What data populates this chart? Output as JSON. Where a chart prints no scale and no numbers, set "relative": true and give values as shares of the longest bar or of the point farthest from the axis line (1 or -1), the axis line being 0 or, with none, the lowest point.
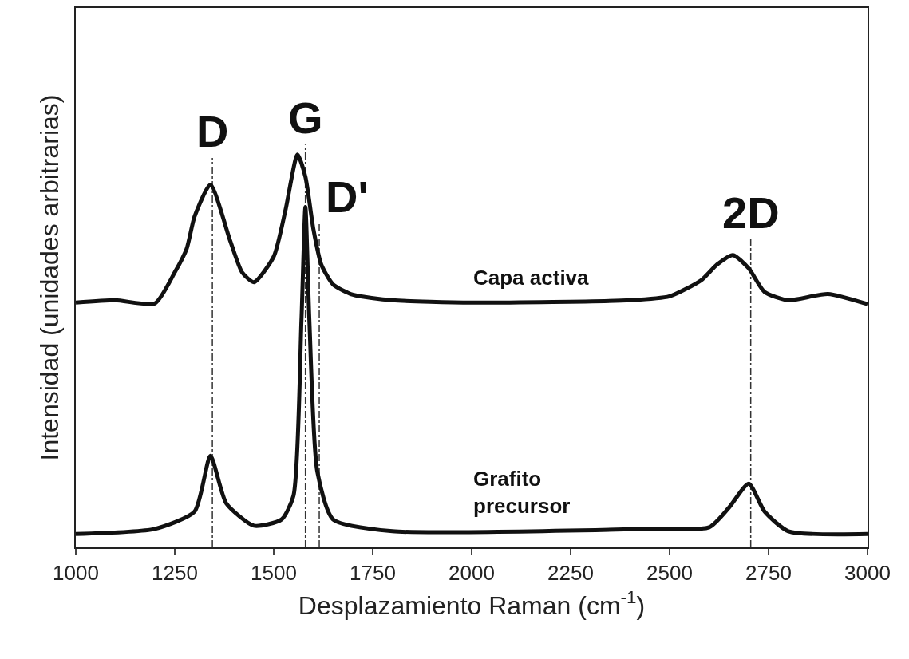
{
  "chart_data": {
    "type": "line",
    "relative": true,
    "xlabel": "Desplazamiento Raman (cm$^{-1}$)",
    "ylabel": "Intensidad (unidades arbitrarias)",
    "xlim": [
      1000,
      3000
    ],
    "xticks": [
      1000,
      1250,
      1500,
      1750,
      2000,
      2250,
      2500,
      2750,
      3000
    ],
    "grid": false,
    "legend": false,
    "tick_labels": "x",
    "line_style": "solid",
    "marker": "none",
    "series": [
      {
        "name": "Capa activa",
        "color": "#111111",
        "x": [
          1000,
          1100,
          1200,
          1250,
          1280,
          1300,
          1340,
          1390,
          1420,
          1450,
          1500,
          1530,
          1560,
          1580,
          1600,
          1620,
          1650,
          1700,
          1800,
          2000,
          2400,
          2500,
          2580,
          2620,
          2660,
          2700,
          2740,
          2800,
          2900,
          3000
        ],
        "values": [
          0.623,
          0.629,
          0.621,
          0.7,
          0.76,
          0.842,
          0.923,
          0.78,
          0.7,
          0.675,
          0.74,
          0.86,
          1.0,
          0.943,
          0.811,
          0.72,
          0.669,
          0.643,
          0.629,
          0.623,
          0.629,
          0.639,
          0.68,
          0.72,
          0.744,
          0.71,
          0.65,
          0.629,
          0.645,
          0.619
        ]
      },
      {
        "name": "Grafito\nprecursor",
        "color": "#111111",
        "x": [
          1000,
          1200,
          1300,
          1340,
          1380,
          1450,
          1520,
          1550,
          1570,
          1580,
          1590,
          1610,
          1650,
          1800,
          2450,
          2600,
          2650,
          2700,
          2740,
          2800,
          3000
        ],
        "values": [
          0.034,
          0.047,
          0.091,
          0.233,
          0.112,
          0.055,
          0.071,
          0.132,
          0.578,
          0.866,
          0.578,
          0.193,
          0.071,
          0.041,
          0.047,
          0.051,
          0.101,
          0.162,
          0.091,
          0.041,
          0.034
        ]
      }
    ],
    "ref_lines": [
      {
        "axis": "x",
        "value": 1345,
        "label": "D",
        "color": "#333333",
        "line_style": "dashdot"
      },
      {
        "axis": "x",
        "value": 1580,
        "label": "G",
        "color": "#333333",
        "line_style": "dashdot"
      },
      {
        "axis": "x",
        "value": 1615,
        "label": "D'",
        "color": "#333333",
        "line_style": "dashdot"
      },
      {
        "axis": "x",
        "value": 2705,
        "label": "2D",
        "color": "#333333",
        "line_style": "dashdot"
      }
    ]
  }
}
